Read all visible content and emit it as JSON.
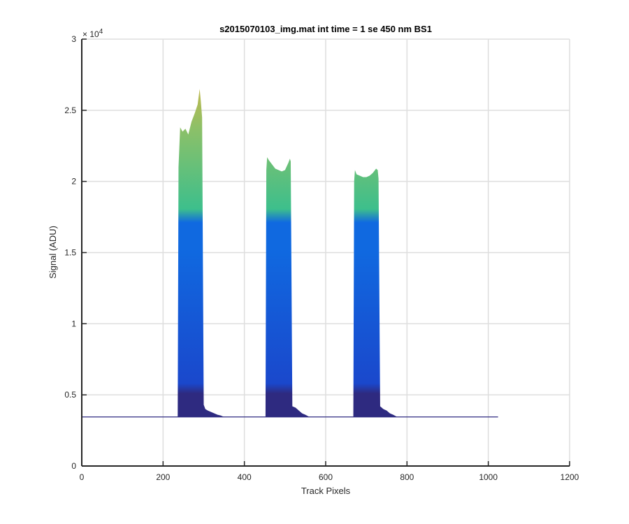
{
  "chart_data": {
    "type": "area",
    "title": "s2015070103_img.mat int time = 1 se  450 nm BS1",
    "xlabel": "Track Pixels",
    "ylabel": "Signal (ADU)",
    "xlim": [
      0,
      1200
    ],
    "ylim": [
      0,
      30000
    ],
    "xticks": [
      0,
      200,
      400,
      600,
      800,
      1000,
      1200
    ],
    "xtick_labels": [
      "0",
      "200",
      "400",
      "600",
      "800",
      "1000",
      "1200"
    ],
    "yticks": [
      0,
      5000,
      10000,
      15000,
      20000,
      25000,
      30000
    ],
    "ytick_labels": [
      "0",
      "0.5",
      "1",
      "1.5",
      "2",
      "2.5",
      "3"
    ],
    "y_exponent_base": "× 10",
    "y_exponent_power": "4",
    "grid": true,
    "x_range_data": [
      0,
      1024
    ],
    "baseline": 3450,
    "colors": {
      "low": "#2e2a80",
      "mid_dark": "#1a48cc",
      "mid": "#1069e0",
      "upper": "#3dbf8c",
      "top": "#8cc068",
      "tip": "#c8b84a"
    },
    "series": [
      {
        "x": [
          0,
          236,
          238,
          242,
          248,
          255,
          262,
          270,
          278,
          285,
          290,
          293,
          296,
          300,
          304,
          310,
          318,
          326,
          334,
          342,
          350,
          1024
        ],
        "y": [
          3450,
          3450,
          21000,
          23800,
          23500,
          23700,
          23300,
          24200,
          24800,
          25400,
          26500,
          25600,
          24500,
          4300,
          4000,
          3900,
          3800,
          3700,
          3600,
          3550,
          3450,
          3450
        ]
      },
      {
        "x": [
          0,
          452,
          454,
          456,
          460,
          468,
          476,
          484,
          492,
          500,
          508,
          512,
          514,
          518,
          526,
          534,
          542,
          550,
          560,
          1024
        ],
        "y": [
          3450,
          3450,
          20800,
          21700,
          21500,
          21200,
          20900,
          20800,
          20700,
          20800,
          21300,
          21600,
          21400,
          4200,
          4100,
          3900,
          3700,
          3600,
          3450,
          3450
        ]
      },
      {
        "x": [
          0,
          668,
          670,
          672,
          676,
          684,
          692,
          700,
          708,
          716,
          724,
          728,
          730,
          734,
          742,
          750,
          758,
          766,
          776,
          1024
        ],
        "y": [
          3450,
          3450,
          20000,
          20800,
          20500,
          20400,
          20300,
          20300,
          20400,
          20600,
          20900,
          20800,
          20200,
          4200,
          4000,
          3900,
          3700,
          3600,
          3450,
          3450
        ]
      }
    ]
  }
}
